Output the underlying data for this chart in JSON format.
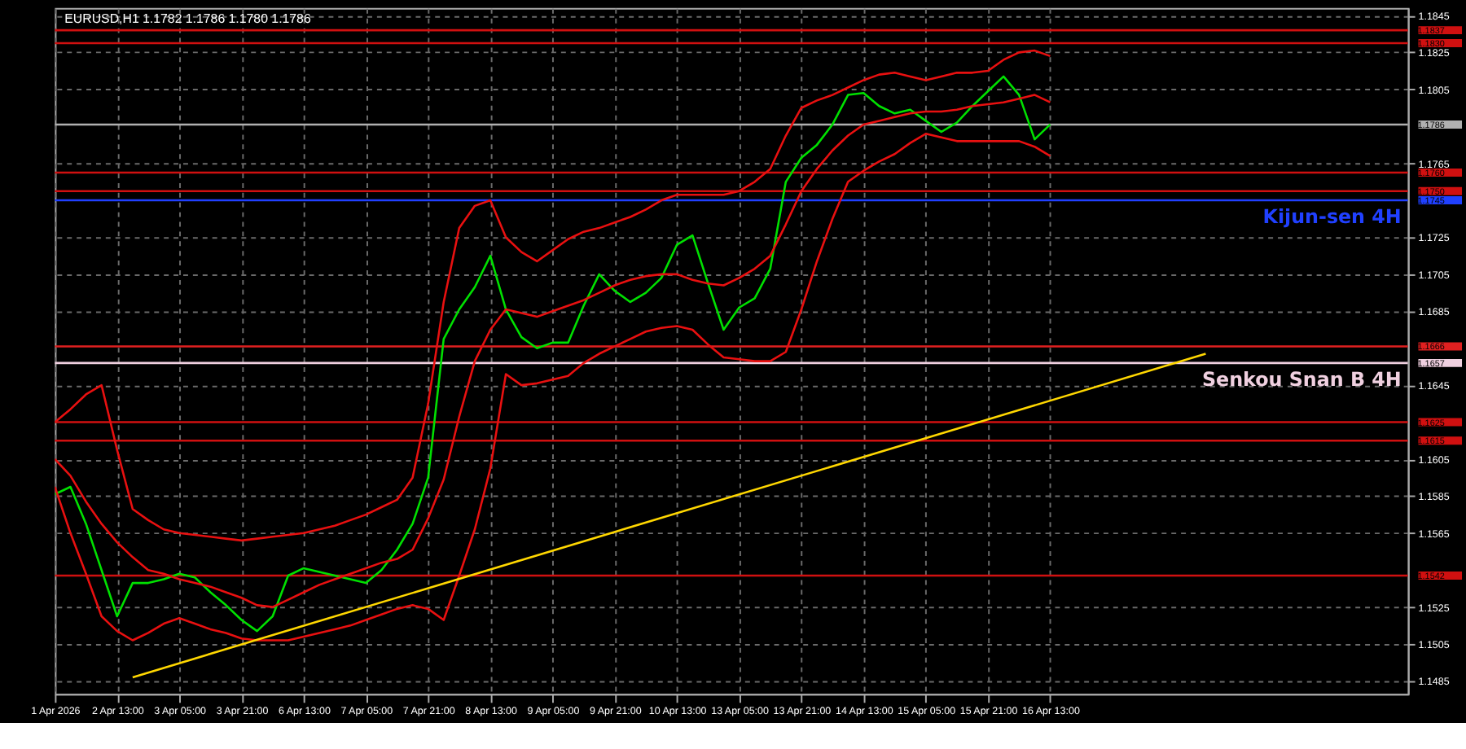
{
  "chart_data": {
    "type": "line",
    "title": "EURUSD,H1  1.1782 1.1786 1.1780 1.1786",
    "categories": [
      "1 Apr 2026",
      null,
      null,
      null,
      "2 Apr 13:00",
      null,
      null,
      null,
      "3 Apr 05:00",
      null,
      null,
      null,
      "3 Apr 21:00",
      null,
      null,
      null,
      "6 Apr 13:00",
      null,
      null,
      null,
      "7 Apr 05:00",
      null,
      null,
      null,
      "7 Apr 21:00",
      null,
      null,
      null,
      "8 Apr 13:00",
      null,
      null,
      null,
      "9 Apr 05:00",
      null,
      null,
      null,
      "9 Apr 21:00",
      null,
      null,
      null,
      "10 Apr 13:00",
      null,
      null,
      null,
      "13 Apr 05:00",
      null,
      null,
      null,
      "13 Apr 21:00",
      null,
      null,
      null,
      "14 Apr 13:00",
      null,
      null,
      null,
      "15 Apr 05:00",
      null,
      null,
      null,
      "15 Apr 21:00",
      null,
      null,
      null,
      "16 Apr 13:00",
      null,
      null,
      null,
      null,
      null,
      null,
      null,
      null,
      null,
      null,
      null,
      null,
      null,
      null,
      null,
      null,
      null,
      null,
      null,
      null,
      null,
      null,
      null
    ],
    "ylim": [
      1.1478,
      1.1849
    ],
    "yticks": [
      1.1485,
      1.1505,
      1.1525,
      1.1565,
      1.1585,
      1.1605,
      1.1645,
      1.1685,
      1.1705,
      1.1725,
      1.1765,
      1.1805,
      1.1825,
      1.1845
    ],
    "grid": true,
    "marker": "none",
    "line_style": "solid",
    "series": [
      {
        "color": "#00e000",
        "values": [
          1.1586,
          1.159,
          1.157,
          1.1545,
          1.152,
          1.1538,
          1.1538,
          1.154,
          1.1543,
          1.1541,
          1.1533,
          1.1526,
          1.1518,
          1.1512,
          1.152,
          1.1542,
          1.1546,
          1.1544,
          1.1542,
          1.154,
          1.1538,
          1.1545,
          1.1556,
          1.157,
          1.1595,
          1.167,
          1.1686,
          1.1698,
          1.1715,
          1.1686,
          1.1671,
          1.1665,
          1.1668,
          1.1668,
          1.1688,
          1.1705,
          1.1696,
          1.169,
          1.1695,
          1.1703,
          1.1721,
          1.1726,
          1.17,
          1.1675,
          1.1687,
          1.1692,
          1.1708,
          1.1755,
          1.1768,
          1.1775,
          1.1786,
          1.1802,
          1.1803,
          1.1796,
          1.1792,
          1.1794,
          1.1788,
          1.1782,
          1.1787,
          1.1796,
          1.1804,
          1.1812,
          1.1802,
          1.1778,
          1.1786,
          null,
          null,
          null,
          null,
          null,
          null,
          null,
          null,
          null,
          null,
          null,
          null,
          null,
          null,
          null,
          null,
          null,
          null,
          null,
          null,
          null,
          null,
          null
        ]
      },
      {
        "color": "#e81010",
        "values": [
          1.1625,
          1.1632,
          1.164,
          1.1645,
          1.161,
          1.1578,
          1.1572,
          1.1567,
          1.1565,
          1.1564,
          1.1563,
          1.1562,
          1.1561,
          1.1562,
          1.1563,
          1.1564,
          1.1565,
          1.1567,
          1.1569,
          1.1572,
          1.1575,
          1.1579,
          1.1583,
          1.1595,
          1.1635,
          1.169,
          1.173,
          1.1742,
          1.1745,
          1.1725,
          1.1717,
          1.1712,
          1.1718,
          1.1724,
          1.1728,
          1.173,
          1.1733,
          1.1736,
          1.174,
          1.1745,
          1.1748,
          1.1748,
          1.1748,
          1.1748,
          1.175,
          1.1755,
          1.1762,
          1.178,
          1.1795,
          1.1799,
          1.1802,
          1.1806,
          1.181,
          1.1813,
          1.1814,
          1.1812,
          1.181,
          1.1812,
          1.1814,
          1.1814,
          1.1815,
          1.1821,
          1.1825,
          1.1826,
          1.1823,
          null,
          null,
          null,
          null,
          null,
          null,
          null,
          null,
          null,
          null,
          null,
          null,
          null,
          null,
          null,
          null,
          null,
          null,
          null,
          null,
          null,
          null,
          null
        ]
      },
      {
        "color": "#e81010",
        "values": [
          1.1605,
          1.1596,
          1.1582,
          1.157,
          1.156,
          1.1552,
          1.1545,
          1.1543,
          1.154,
          1.1538,
          1.1536,
          1.1533,
          1.153,
          1.1526,
          1.1525,
          1.1529,
          1.1533,
          1.1537,
          1.154,
          1.1543,
          1.1546,
          1.1549,
          1.1551,
          1.1556,
          1.1573,
          1.1594,
          1.1628,
          1.1658,
          1.1675,
          1.1686,
          1.1684,
          1.1682,
          1.1685,
          1.1688,
          1.1691,
          1.1695,
          1.1699,
          1.1702,
          1.1704,
          1.1705,
          1.1705,
          1.1702,
          1.17,
          1.1699,
          1.1703,
          1.1708,
          1.1715,
          1.1732,
          1.175,
          1.1762,
          1.1772,
          1.178,
          1.1786,
          1.1788,
          1.179,
          1.1792,
          1.1793,
          1.1793,
          1.1794,
          1.1796,
          1.1797,
          1.1798,
          1.18,
          1.1802,
          1.1798,
          null,
          null,
          null,
          null,
          null,
          null,
          null,
          null,
          null,
          null,
          null,
          null,
          null,
          null,
          null,
          null,
          null,
          null,
          null,
          null,
          null,
          null,
          null
        ]
      },
      {
        "color": "#e81010",
        "values": [
          1.159,
          1.1565,
          1.1543,
          1.152,
          1.1512,
          1.1507,
          1.1511,
          1.1516,
          1.1519,
          1.1516,
          1.1513,
          1.1511,
          1.1508,
          1.1507,
          1.1507,
          1.1507,
          1.1509,
          1.1511,
          1.1513,
          1.1515,
          1.1518,
          1.1521,
          1.1524,
          1.1526,
          1.1524,
          1.1518,
          1.1542,
          1.1567,
          1.16,
          1.1651,
          1.1645,
          1.1646,
          1.1648,
          1.165,
          1.1657,
          1.1662,
          1.1666,
          1.167,
          1.1674,
          1.1676,
          1.1677,
          1.1675,
          1.1667,
          1.166,
          1.1659,
          1.1658,
          1.1658,
          1.1663,
          1.1686,
          1.1712,
          1.1735,
          1.1755,
          1.1761,
          1.1766,
          1.177,
          1.1776,
          1.1781,
          1.1779,
          1.1777,
          1.1777,
          1.1777,
          1.1777,
          1.1777,
          1.1774,
          1.1769,
          null,
          null,
          null,
          null,
          null,
          null,
          null,
          null,
          null,
          null,
          null,
          null,
          null,
          null,
          null,
          null,
          null,
          null,
          null,
          null,
          null,
          null,
          null
        ]
      },
      {
        "color": "#ffd700",
        "values": [
          null,
          null,
          null,
          null,
          null,
          1.1487,
          null,
          null,
          null,
          null,
          null,
          null,
          null,
          null,
          null,
          null,
          null,
          null,
          null,
          null,
          null,
          null,
          null,
          null,
          null,
          null,
          null,
          null,
          null,
          null,
          null,
          null,
          null,
          null,
          null,
          null,
          null,
          null,
          null,
          null,
          null,
          null,
          null,
          null,
          null,
          null,
          null,
          null,
          null,
          null,
          null,
          null,
          null,
          null,
          null,
          null,
          null,
          null,
          null,
          null,
          null,
          null,
          null,
          null,
          null,
          null,
          null,
          null,
          null,
          null,
          null,
          null,
          null,
          null,
          1.1662,
          null,
          null,
          null,
          null,
          null,
          null,
          null,
          null,
          null,
          null,
          null,
          null,
          null
        ]
      }
    ],
    "ref_lines": [
      {
        "axis": "y",
        "value": 1.1837,
        "color": "#d01010",
        "label": "1.1837"
      },
      {
        "axis": "y",
        "value": 1.183,
        "color": "#d01010",
        "label": "1.1830"
      },
      {
        "axis": "y",
        "value": 1.1786,
        "color": "#b0b0b0",
        "label": "1.1786"
      },
      {
        "axis": "y",
        "value": 1.176,
        "color": "#d01010",
        "label": "1.1760"
      },
      {
        "axis": "y",
        "value": 1.175,
        "color": "#d01010",
        "label": "1.1750"
      },
      {
        "axis": "y",
        "value": 1.1745,
        "color": "#2040ff",
        "label": "1.1745"
      },
      {
        "axis": "y",
        "value": 1.1666,
        "color": "#e02020",
        "label": "1.1666"
      },
      {
        "axis": "y",
        "value": 1.1657,
        "color": "#f0d0e0",
        "label": "1.1657"
      },
      {
        "axis": "y",
        "value": 1.1625,
        "color": "#d01010",
        "label": "1.1625"
      },
      {
        "axis": "y",
        "value": 1.1615,
        "color": "#d01010",
        "label": "1.1615"
      },
      {
        "axis": "y",
        "value": 1.1542,
        "color": "#d01010",
        "label": "1.1542"
      }
    ],
    "annotations": [
      {
        "text": "Kijun-sen 4H",
        "y": 1.1745
      },
      {
        "text": "Senkou Snan B 4H",
        "y": 1.1657
      }
    ]
  }
}
